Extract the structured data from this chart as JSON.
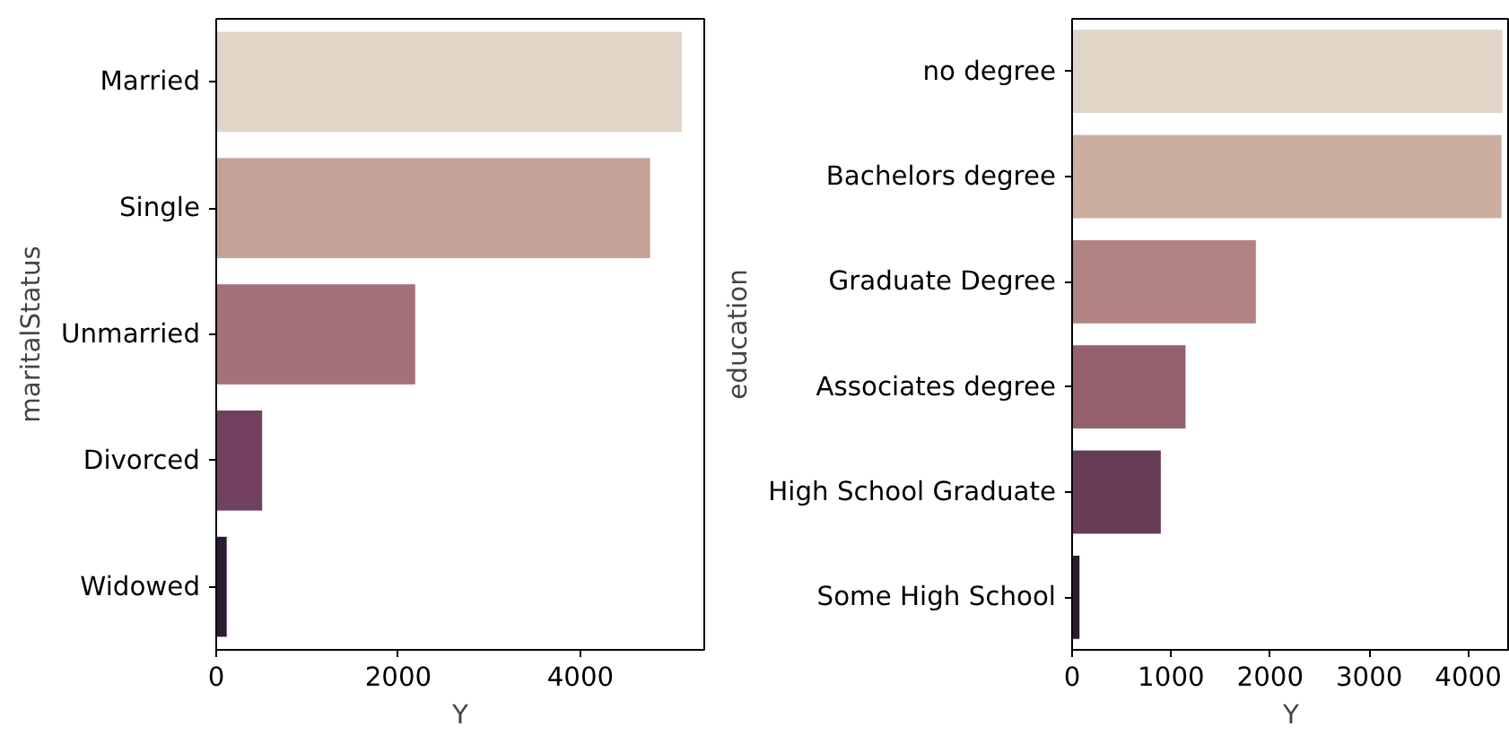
{
  "chart_data": [
    {
      "type": "bar",
      "orientation": "horizontal",
      "ylabel": "maritalStatus",
      "xlabel": "Y",
      "categories": [
        "Married",
        "Single",
        "Unmarried",
        "Divorced",
        "Widowed"
      ],
      "values": [
        5120,
        4770,
        2190,
        510,
        120
      ],
      "colors": [
        "#e0d5c7",
        "#c4a298",
        "#a3717a",
        "#714060",
        "#2e1a33"
      ],
      "xlim": [
        0,
        5360
      ],
      "xticks": [
        0,
        2000,
        4000
      ],
      "grid": false
    },
    {
      "type": "bar",
      "orientation": "horizontal",
      "ylabel": "education",
      "xlabel": "Y",
      "categories": [
        "no degree",
        "Bachelors degree",
        "Graduate Degree",
        "Associates degree",
        "High School Graduate",
        "Some High School"
      ],
      "values": [
        4350,
        4340,
        1860,
        1150,
        900,
        80
      ],
      "colors": [
        "#e0d5c7",
        "#cbaea0",
        "#b28383",
        "#955f6d",
        "#663c57",
        "#2e1a33"
      ],
      "xlim": [
        0,
        4420
      ],
      "xticks": [
        0,
        1000,
        2000,
        3000,
        4000
      ],
      "grid": false
    }
  ]
}
